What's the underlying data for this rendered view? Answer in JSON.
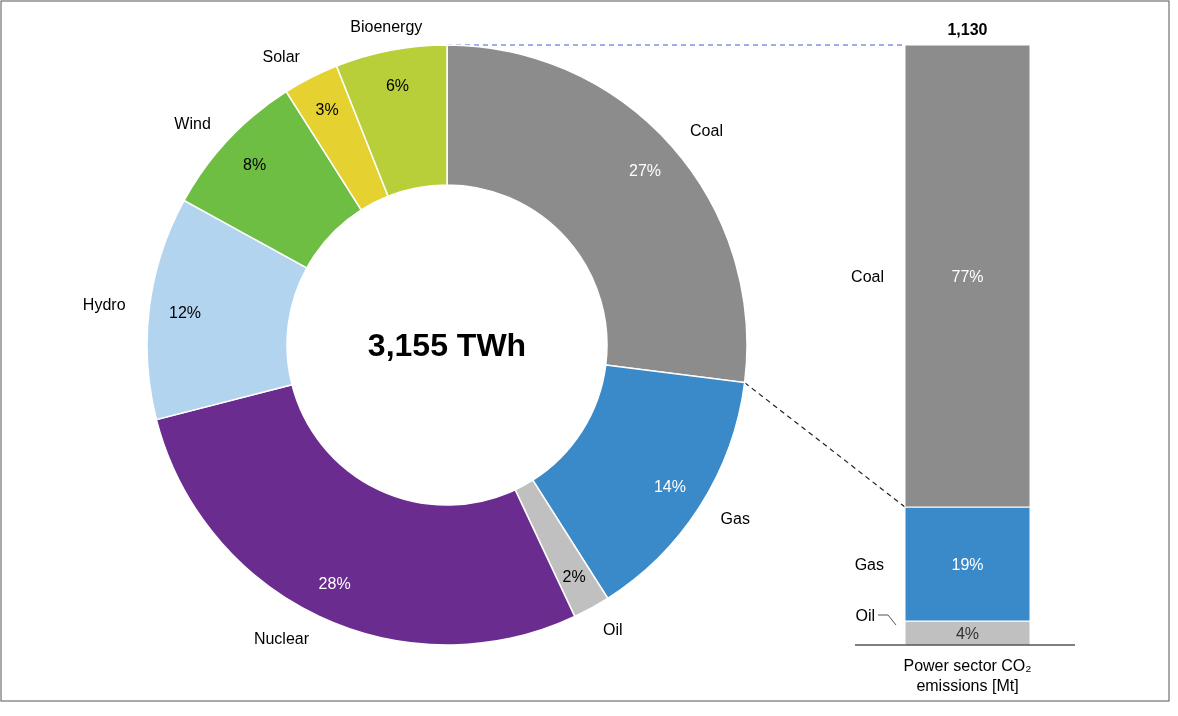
{
  "chart_data": [
    {
      "type": "donut",
      "categories": [
        "Coal",
        "Gas",
        "Oil",
        "Nuclear",
        "Hydro",
        "Wind",
        "Solar",
        "Bioenergy"
      ],
      "values": [
        27,
        14,
        2,
        28,
        12,
        8,
        3,
        6
      ],
      "value_labels": [
        "27%",
        "14%",
        "2%",
        "28%",
        "12%",
        "8%",
        "3%",
        "6%"
      ],
      "colors": [
        "#8c8c8c",
        "#3a8ac9",
        "#c0c0c0",
        "#6a2d8f",
        "#b3d4ef",
        "#6ebe44",
        "#e5d130",
        "#b9cf3a"
      ],
      "annotations": [
        "3,155 TWh"
      ]
    },
    {
      "type": "bar",
      "stacked": true,
      "categories": [
        null
      ],
      "xlabel": "Power sector CO₂ emissions [Mt]",
      "annotations": [
        "1,130"
      ],
      "series": [
        {
          "name": "Oil",
          "color": "#c0c0c0",
          "values": [
            4
          ],
          "value_labels": [
            "4%"
          ]
        },
        {
          "name": "Gas",
          "color": "#3a8ac9",
          "values": [
            19
          ],
          "value_labels": [
            "19%"
          ]
        },
        {
          "name": "Coal",
          "color": "#8c8c8c",
          "values": [
            77
          ],
          "value_labels": [
            "77%"
          ]
        }
      ]
    }
  ]
}
